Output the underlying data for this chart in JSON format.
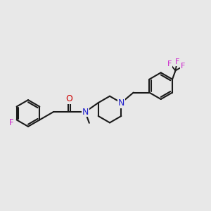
{
  "bg_color": "#e8e8e8",
  "bond_color": "#1a1a1a",
  "N_color": "#2020cc",
  "O_color": "#cc0000",
  "F_color": "#cc22cc",
  "lw": 1.5,
  "fs": 8.5,
  "fig_w": 3.0,
  "fig_h": 3.0,
  "dpi": 100,
  "xlim": [
    0.5,
    10.0
  ],
  "ylim": [
    3.2,
    7.8
  ]
}
